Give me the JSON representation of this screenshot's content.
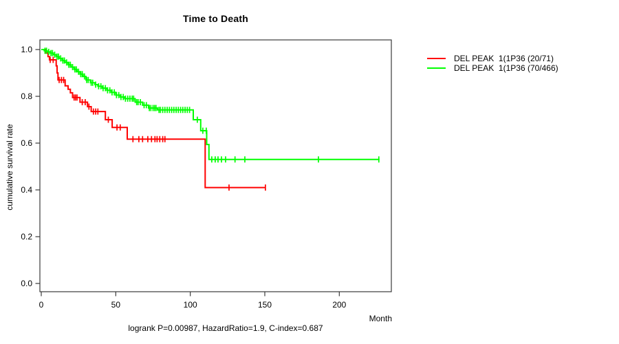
{
  "title": "Time to Death",
  "ylabel": "cumulative survival rate",
  "xlabel": "Month",
  "footer": "logrank P=0.00987, HazardRatio=1.9, C-index=0.687",
  "colors": {
    "axis": "#3a3a3a",
    "text": "#000000",
    "series1": "#ff0000",
    "series2": "#00ff00"
  },
  "legend": [
    {
      "label": "DEL PEAK  1(1P36 (20/71)",
      "color": "#ff0000"
    },
    {
      "label": "DEL PEAK  1(1P36 (70/466)",
      "color": "#00ff00"
    }
  ],
  "chart_data": {
    "type": "line",
    "subtype": "kaplan-meier-step",
    "title": "Time to Death",
    "xlabel": "Month",
    "ylabel": "cumulative survival rate",
    "xlim": [
      0,
      235
    ],
    "ylim": [
      0,
      1.0
    ],
    "xticks": [
      0,
      50,
      100,
      150,
      200
    ],
    "yticks": [
      0.0,
      0.2,
      0.4,
      0.6,
      0.8,
      1.0
    ],
    "grid": false,
    "legend_position": "top-right-outside",
    "series": [
      {
        "key": "del-peak-1p36-20-71",
        "name": "DEL PEAK  1(1P36 (20/71)",
        "color": "#ff0000",
        "end_month": 150.4,
        "steps": [
          [
            0,
            1.0
          ],
          [
            3,
            0.985
          ],
          [
            4.5,
            0.97
          ],
          [
            5.5,
            0.956
          ],
          [
            10,
            0.93
          ],
          [
            10.6,
            0.9
          ],
          [
            11.2,
            0.87
          ],
          [
            16,
            0.845
          ],
          [
            18,
            0.83
          ],
          [
            19.5,
            0.815
          ],
          [
            21,
            0.795
          ],
          [
            26,
            0.775
          ],
          [
            31,
            0.756
          ],
          [
            33.5,
            0.735
          ],
          [
            43,
            0.7
          ],
          [
            47.6,
            0.667
          ],
          [
            57.7,
            0.617
          ],
          [
            110,
            0.41
          ]
        ],
        "censor_months": [
          6,
          8,
          12,
          13.5,
          15,
          22,
          23,
          24,
          27.5,
          29.5,
          32,
          35,
          36.5,
          38,
          45,
          50.8,
          53,
          61.5,
          65.5,
          68,
          71.5,
          74,
          76.3,
          77.7,
          79.5,
          81.5,
          83,
          126,
          150.4
        ]
      },
      {
        "key": "del-peak-1p36-70-466",
        "name": "DEL PEAK  1(1P36 (70/466)",
        "color": "#00ff00",
        "end_month": 227,
        "steps": [
          [
            0,
            1.0
          ],
          [
            2,
            0.995
          ],
          [
            4,
            0.99
          ],
          [
            6,
            0.985
          ],
          [
            8,
            0.978
          ],
          [
            10,
            0.97
          ],
          [
            12,
            0.962
          ],
          [
            14,
            0.953
          ],
          [
            16,
            0.945
          ],
          [
            18,
            0.935
          ],
          [
            20,
            0.925
          ],
          [
            22,
            0.915
          ],
          [
            24,
            0.905
          ],
          [
            26,
            0.895
          ],
          [
            28,
            0.885
          ],
          [
            30,
            0.87
          ],
          [
            33,
            0.858
          ],
          [
            36,
            0.85
          ],
          [
            38,
            0.843
          ],
          [
            41,
            0.835
          ],
          [
            44,
            0.826
          ],
          [
            47,
            0.817
          ],
          [
            50,
            0.805
          ],
          [
            53,
            0.797
          ],
          [
            56,
            0.79
          ],
          [
            63,
            0.775
          ],
          [
            68,
            0.762
          ],
          [
            72,
            0.75
          ],
          [
            78,
            0.742
          ],
          [
            102,
            0.7
          ],
          [
            107,
            0.653
          ],
          [
            111,
            0.594
          ],
          [
            112.5,
            0.53
          ]
        ],
        "censor_months": [
          2.5,
          3.5,
          5,
          6.5,
          7.5,
          9,
          10.5,
          11.5,
          13,
          14.5,
          15.5,
          17,
          18.5,
          19.5,
          21,
          22.5,
          23.5,
          25,
          26.5,
          27.5,
          29,
          30.5,
          31.5,
          33.5,
          34.5,
          36.5,
          38.5,
          40,
          41.5,
          43,
          44.5,
          46,
          47.5,
          49,
          50.5,
          52,
          53.5,
          55,
          56.5,
          58,
          59.5,
          61,
          62,
          64,
          65,
          66.5,
          69,
          70.5,
          72.5,
          73.5,
          75,
          76,
          77,
          79,
          80,
          81.5,
          83,
          84.5,
          86,
          87.5,
          89,
          90.5,
          92,
          93.5,
          95,
          96.5,
          98,
          99.5,
          104.7,
          108.4,
          110.7,
          114.4,
          116.7,
          118.6,
          120.9,
          123.7,
          130,
          136.6,
          186,
          226.5
        ]
      }
    ]
  }
}
